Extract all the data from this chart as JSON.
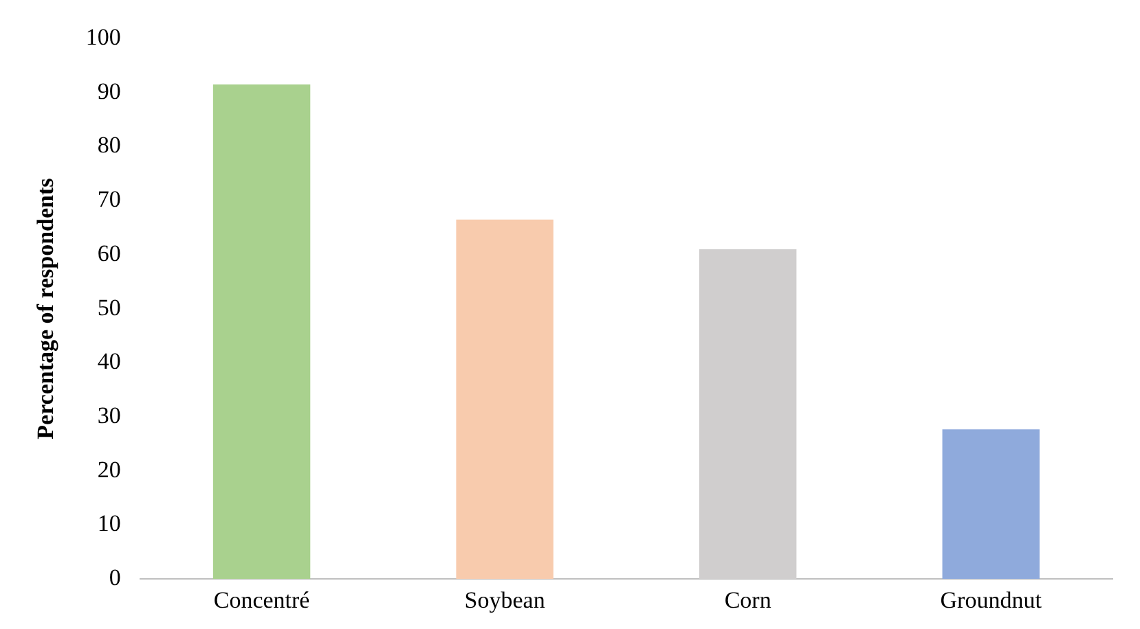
{
  "chart_data": {
    "type": "bar",
    "ylabel": "Percentage of respondents",
    "categories": [
      "Concentré",
      "Soybean",
      "Corn",
      "Groundnut"
    ],
    "values": [
      91.5,
      66.5,
      61,
      27.7
    ],
    "colors": [
      "#a9d18e",
      "#f8cbad",
      "#d0cece",
      "#8faadc"
    ],
    "ylim": [
      0,
      100
    ],
    "yticks": [
      0,
      10,
      20,
      30,
      40,
      50,
      60,
      70,
      80,
      90,
      100
    ],
    "grid": false,
    "legend": false
  }
}
